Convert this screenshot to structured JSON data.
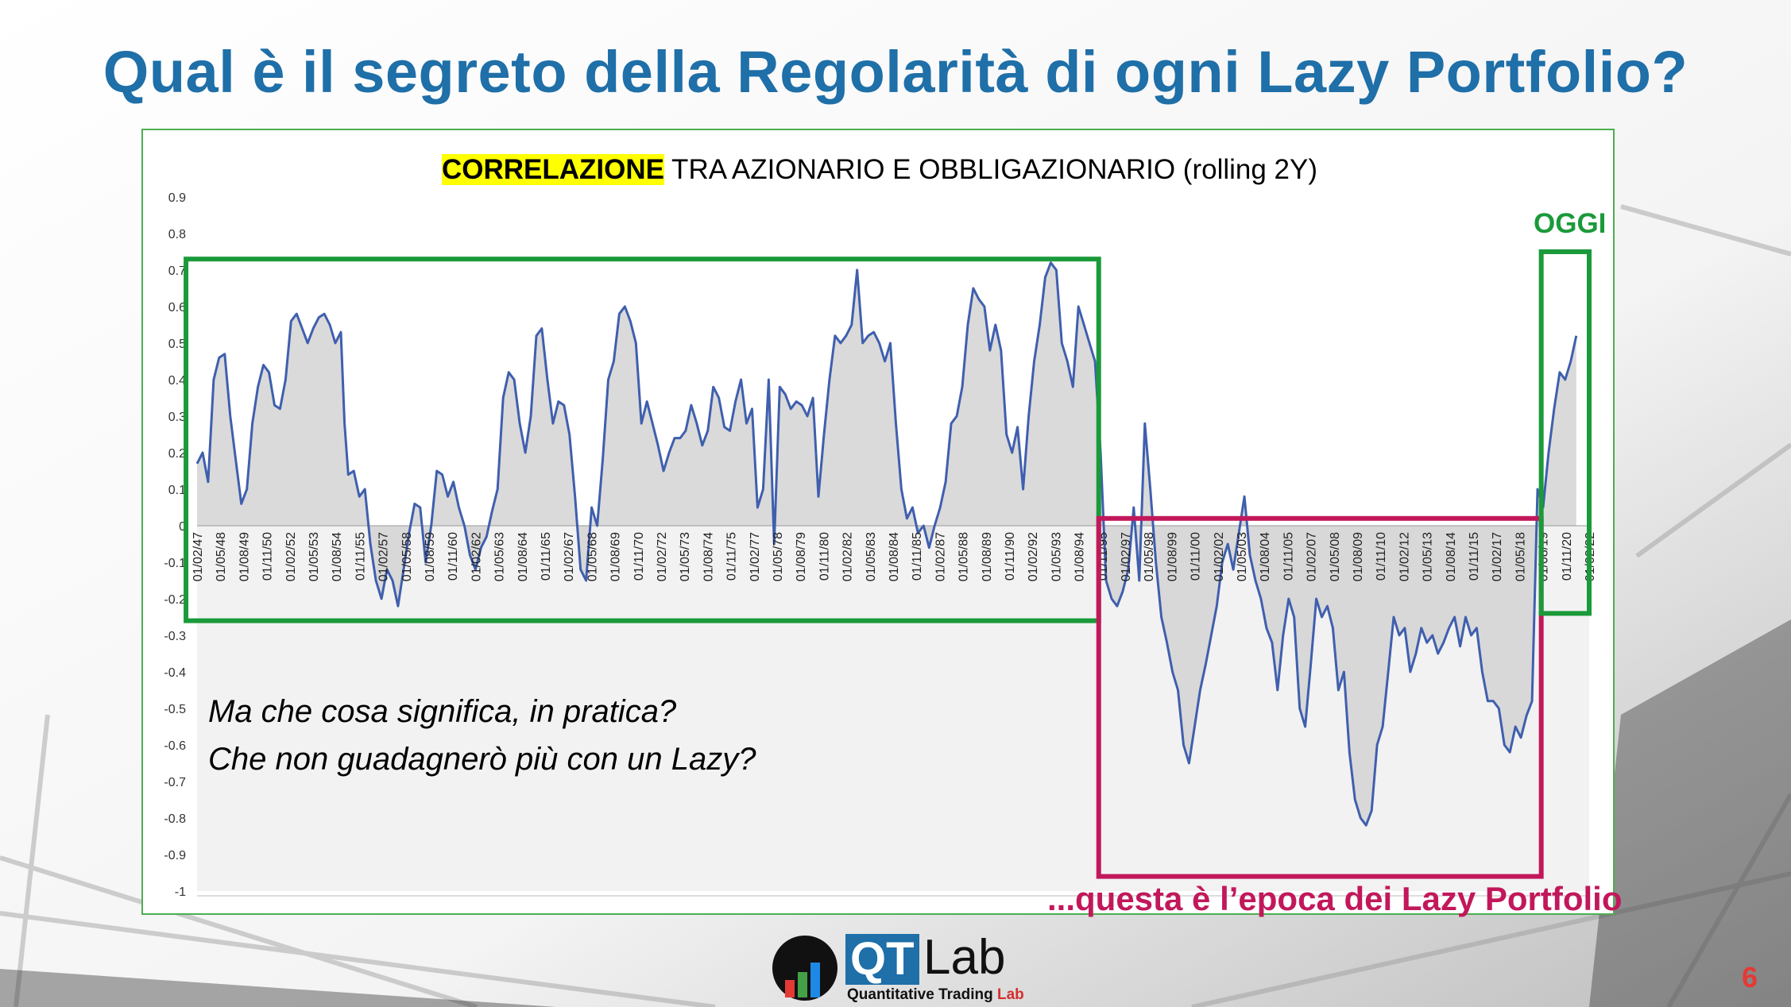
{
  "slide": {
    "title": "Qual è il segreto della Regolarità di ogni Lazy Portfolio?",
    "page_number": "6"
  },
  "chart_title": {
    "highlight": "CORRELAZIONE",
    "rest": " TRA AZIONARIO E OBBLIGAZIONARIO (rolling 2Y)"
  },
  "annotations": {
    "oggi": "OGGI",
    "question_line1": "Ma che cosa significa, in pratica?",
    "question_line2": "Che non guadagnerò più con un Lazy?",
    "lazy_era": "...questa è l’epoca dei Lazy Portfolio",
    "colors": {
      "green": "#1a9a3a",
      "crimson": "#c2185b",
      "series": "#3f5fae",
      "fill": "#d3d3d3"
    }
  },
  "logo": {
    "qt": "QT",
    "lab": "Lab",
    "sub_prefix": "Quantitative Trading ",
    "sub_lab": "Lab"
  },
  "chart_data": {
    "type": "area",
    "title": "CORRELAZIONE TRA AZIONARIO E OBBLIGAZIONARIO (rolling 2Y)",
    "xlabel": "",
    "ylabel": "",
    "ylim": [
      -1,
      0.9
    ],
    "y_ticks": [
      "0.9",
      "0.8",
      "0.7",
      "0.6",
      "0.5",
      "0.4",
      "0.3",
      "0.2",
      "0.1",
      "0",
      "-0.1",
      "-0.2",
      "-0.3",
      "-0.4",
      "-0.5",
      "-0.6",
      "-0.7",
      "-0.8",
      "-0.9",
      "-1"
    ],
    "x_tick_labels": [
      "01/02/47",
      "01/05/48",
      "01/08/49",
      "01/11/50",
      "01/02/52",
      "01/05/53",
      "01/08/54",
      "01/11/55",
      "01/02/57",
      "01/05/58",
      "01/08/59",
      "01/11/60",
      "01/02/62",
      "01/05/63",
      "01/08/64",
      "01/11/65",
      "01/02/67",
      "01/05/68",
      "01/08/69",
      "01/11/70",
      "01/02/72",
      "01/05/73",
      "01/08/74",
      "01/11/75",
      "01/02/77",
      "01/05/78",
      "01/08/79",
      "01/11/80",
      "01/02/82",
      "01/05/83",
      "01/08/84",
      "01/11/85",
      "01/02/87",
      "01/05/88",
      "01/08/89",
      "01/11/90",
      "01/02/92",
      "01/05/93",
      "01/08/94",
      "01/11/95",
      "01/02/97",
      "01/05/98",
      "01/08/99",
      "01/11/00",
      "01/02/02",
      "01/05/03",
      "01/08/04",
      "01/11/05",
      "01/02/07",
      "01/05/08",
      "01/08/09",
      "01/11/10",
      "01/02/12",
      "01/05/13",
      "01/08/14",
      "01/11/15",
      "01/02/17",
      "01/05/18",
      "01/08/19",
      "01/11/20",
      "01/02/22"
    ],
    "x_range_years": [
      1947.1,
      2022.6
    ],
    "grid": false,
    "legend": "none",
    "series": [
      {
        "points": [
          [
            1947.1,
            0.17
          ],
          [
            1947.4,
            0.2
          ],
          [
            1947.7,
            0.12
          ],
          [
            1948.0,
            0.4
          ],
          [
            1948.3,
            0.46
          ],
          [
            1948.6,
            0.47
          ],
          [
            1948.9,
            0.3
          ],
          [
            1949.2,
            0.18
          ],
          [
            1949.5,
            0.06
          ],
          [
            1949.8,
            0.1
          ],
          [
            1950.1,
            0.28
          ],
          [
            1950.4,
            0.38
          ],
          [
            1950.7,
            0.44
          ],
          [
            1951.0,
            0.42
          ],
          [
            1951.3,
            0.33
          ],
          [
            1951.6,
            0.32
          ],
          [
            1951.9,
            0.4
          ],
          [
            1952.2,
            0.56
          ],
          [
            1952.5,
            0.58
          ],
          [
            1952.8,
            0.54
          ],
          [
            1953.1,
            0.5
          ],
          [
            1953.4,
            0.54
          ],
          [
            1953.7,
            0.57
          ],
          [
            1954.0,
            0.58
          ],
          [
            1954.3,
            0.55
          ],
          [
            1954.6,
            0.5
          ],
          [
            1954.9,
            0.53
          ],
          [
            1955.1,
            0.28
          ],
          [
            1955.3,
            0.14
          ],
          [
            1955.6,
            0.15
          ],
          [
            1955.9,
            0.08
          ],
          [
            1956.2,
            0.1
          ],
          [
            1956.5,
            -0.05
          ],
          [
            1956.8,
            -0.15
          ],
          [
            1957.1,
            -0.2
          ],
          [
            1957.4,
            -0.12
          ],
          [
            1957.7,
            -0.15
          ],
          [
            1958.0,
            -0.22
          ],
          [
            1958.3,
            -0.12
          ],
          [
            1958.6,
            -0.02
          ],
          [
            1958.9,
            0.06
          ],
          [
            1959.2,
            0.05
          ],
          [
            1959.5,
            -0.1
          ],
          [
            1959.8,
            0.0
          ],
          [
            1960.1,
            0.15
          ],
          [
            1960.4,
            0.14
          ],
          [
            1960.7,
            0.08
          ],
          [
            1961.0,
            0.12
          ],
          [
            1961.3,
            0.05
          ],
          [
            1961.6,
            0.0
          ],
          [
            1961.9,
            -0.08
          ],
          [
            1962.2,
            -0.12
          ],
          [
            1962.5,
            -0.06
          ],
          [
            1962.8,
            -0.03
          ],
          [
            1963.1,
            0.04
          ],
          [
            1963.4,
            0.1
          ],
          [
            1963.7,
            0.35
          ],
          [
            1964.0,
            0.42
          ],
          [
            1964.3,
            0.4
          ],
          [
            1964.6,
            0.28
          ],
          [
            1964.9,
            0.2
          ],
          [
            1965.2,
            0.3
          ],
          [
            1965.5,
            0.52
          ],
          [
            1965.8,
            0.54
          ],
          [
            1966.1,
            0.4
          ],
          [
            1966.4,
            0.28
          ],
          [
            1966.7,
            0.34
          ],
          [
            1967.0,
            0.33
          ],
          [
            1967.3,
            0.25
          ],
          [
            1967.6,
            0.08
          ],
          [
            1967.9,
            -0.12
          ],
          [
            1968.2,
            -0.15
          ],
          [
            1968.5,
            0.05
          ],
          [
            1968.8,
            0.0
          ],
          [
            1969.1,
            0.18
          ],
          [
            1969.4,
            0.4
          ],
          [
            1969.7,
            0.45
          ],
          [
            1970.0,
            0.58
          ],
          [
            1970.3,
            0.6
          ],
          [
            1970.6,
            0.56
          ],
          [
            1970.9,
            0.5
          ],
          [
            1971.2,
            0.28
          ],
          [
            1971.5,
            0.34
          ],
          [
            1971.8,
            0.28
          ],
          [
            1972.1,
            0.22
          ],
          [
            1972.4,
            0.15
          ],
          [
            1972.7,
            0.2
          ],
          [
            1973.0,
            0.24
          ],
          [
            1973.3,
            0.24
          ],
          [
            1973.6,
            0.26
          ],
          [
            1973.9,
            0.33
          ],
          [
            1974.2,
            0.28
          ],
          [
            1974.5,
            0.22
          ],
          [
            1974.8,
            0.26
          ],
          [
            1975.1,
            0.38
          ],
          [
            1975.4,
            0.35
          ],
          [
            1975.7,
            0.27
          ],
          [
            1976.0,
            0.26
          ],
          [
            1976.3,
            0.34
          ],
          [
            1976.6,
            0.4
          ],
          [
            1976.9,
            0.28
          ],
          [
            1977.2,
            0.32
          ],
          [
            1977.5,
            0.05
          ],
          [
            1977.8,
            0.1
          ],
          [
            1978.1,
            0.4
          ],
          [
            1978.4,
            -0.05
          ],
          [
            1978.7,
            0.38
          ],
          [
            1979.0,
            0.36
          ],
          [
            1979.3,
            0.32
          ],
          [
            1979.6,
            0.34
          ],
          [
            1979.9,
            0.33
          ],
          [
            1980.2,
            0.3
          ],
          [
            1980.5,
            0.35
          ],
          [
            1980.8,
            0.08
          ],
          [
            1981.1,
            0.25
          ],
          [
            1981.4,
            0.4
          ],
          [
            1981.7,
            0.52
          ],
          [
            1982.0,
            0.5
          ],
          [
            1982.3,
            0.52
          ],
          [
            1982.6,
            0.55
          ],
          [
            1982.9,
            0.7
          ],
          [
            1983.2,
            0.5
          ],
          [
            1983.5,
            0.52
          ],
          [
            1983.8,
            0.53
          ],
          [
            1984.1,
            0.5
          ],
          [
            1984.4,
            0.45
          ],
          [
            1984.7,
            0.5
          ],
          [
            1985.0,
            0.28
          ],
          [
            1985.3,
            0.1
          ],
          [
            1985.6,
            0.02
          ],
          [
            1985.9,
            0.05
          ],
          [
            1986.2,
            -0.02
          ],
          [
            1986.5,
            0.0
          ],
          [
            1986.8,
            -0.06
          ],
          [
            1987.1,
            0.0
          ],
          [
            1987.4,
            0.05
          ],
          [
            1987.7,
            0.12
          ],
          [
            1988.0,
            0.28
          ],
          [
            1988.3,
            0.3
          ],
          [
            1988.6,
            0.38
          ],
          [
            1988.9,
            0.55
          ],
          [
            1989.2,
            0.65
          ],
          [
            1989.5,
            0.62
          ],
          [
            1989.8,
            0.6
          ],
          [
            1990.1,
            0.48
          ],
          [
            1990.4,
            0.55
          ],
          [
            1990.7,
            0.48
          ],
          [
            1991.0,
            0.25
          ],
          [
            1991.3,
            0.2
          ],
          [
            1991.6,
            0.27
          ],
          [
            1991.9,
            0.1
          ],
          [
            1992.2,
            0.3
          ],
          [
            1992.5,
            0.45
          ],
          [
            1992.8,
            0.55
          ],
          [
            1993.1,
            0.68
          ],
          [
            1993.4,
            0.72
          ],
          [
            1993.7,
            0.7
          ],
          [
            1994.0,
            0.5
          ],
          [
            1994.3,
            0.45
          ],
          [
            1994.6,
            0.38
          ],
          [
            1994.9,
            0.6
          ],
          [
            1995.2,
            0.55
          ],
          [
            1995.5,
            0.5
          ],
          [
            1995.8,
            0.45
          ],
          [
            1996.1,
            0.2
          ],
          [
            1996.4,
            -0.15
          ],
          [
            1996.7,
            -0.2
          ],
          [
            1997.0,
            -0.22
          ],
          [
            1997.3,
            -0.18
          ],
          [
            1997.6,
            -0.12
          ],
          [
            1997.9,
            0.05
          ],
          [
            1998.2,
            -0.15
          ],
          [
            1998.5,
            0.28
          ],
          [
            1998.8,
            0.1
          ],
          [
            1999.1,
            -0.1
          ],
          [
            1999.4,
            -0.25
          ],
          [
            1999.7,
            -0.32
          ],
          [
            2000.0,
            -0.4
          ],
          [
            2000.3,
            -0.45
          ],
          [
            2000.6,
            -0.6
          ],
          [
            2000.9,
            -0.65
          ],
          [
            2001.2,
            -0.55
          ],
          [
            2001.5,
            -0.45
          ],
          [
            2001.8,
            -0.38
          ],
          [
            2002.1,
            -0.3
          ],
          [
            2002.4,
            -0.22
          ],
          [
            2002.7,
            -0.1
          ],
          [
            2003.0,
            -0.05
          ],
          [
            2003.3,
            -0.12
          ],
          [
            2003.6,
            -0.02
          ],
          [
            2003.9,
            0.08
          ],
          [
            2004.2,
            -0.08
          ],
          [
            2004.5,
            -0.15
          ],
          [
            2004.8,
            -0.2
          ],
          [
            2005.1,
            -0.28
          ],
          [
            2005.4,
            -0.32
          ],
          [
            2005.7,
            -0.45
          ],
          [
            2006.0,
            -0.3
          ],
          [
            2006.3,
            -0.2
          ],
          [
            2006.6,
            -0.25
          ],
          [
            2006.9,
            -0.5
          ],
          [
            2007.2,
            -0.55
          ],
          [
            2007.5,
            -0.38
          ],
          [
            2007.8,
            -0.2
          ],
          [
            2008.1,
            -0.25
          ],
          [
            2008.4,
            -0.22
          ],
          [
            2008.7,
            -0.28
          ],
          [
            2009.0,
            -0.45
          ],
          [
            2009.3,
            -0.4
          ],
          [
            2009.6,
            -0.62
          ],
          [
            2009.9,
            -0.75
          ],
          [
            2010.2,
            -0.8
          ],
          [
            2010.5,
            -0.82
          ],
          [
            2010.8,
            -0.78
          ],
          [
            2011.1,
            -0.6
          ],
          [
            2011.4,
            -0.55
          ],
          [
            2011.7,
            -0.4
          ],
          [
            2012.0,
            -0.25
          ],
          [
            2012.3,
            -0.3
          ],
          [
            2012.6,
            -0.28
          ],
          [
            2012.9,
            -0.4
          ],
          [
            2013.2,
            -0.35
          ],
          [
            2013.5,
            -0.28
          ],
          [
            2013.8,
            -0.32
          ],
          [
            2014.1,
            -0.3
          ],
          [
            2014.4,
            -0.35
          ],
          [
            2014.7,
            -0.32
          ],
          [
            2015.0,
            -0.28
          ],
          [
            2015.3,
            -0.25
          ],
          [
            2015.6,
            -0.33
          ],
          [
            2015.9,
            -0.25
          ],
          [
            2016.2,
            -0.3
          ],
          [
            2016.5,
            -0.28
          ],
          [
            2016.8,
            -0.4
          ],
          [
            2017.1,
            -0.48
          ],
          [
            2017.4,
            -0.48
          ],
          [
            2017.7,
            -0.5
          ],
          [
            2018.0,
            -0.6
          ],
          [
            2018.3,
            -0.62
          ],
          [
            2018.6,
            -0.55
          ],
          [
            2018.9,
            -0.58
          ],
          [
            2019.2,
            -0.52
          ],
          [
            2019.5,
            -0.48
          ],
          [
            2019.8,
            0.1
          ],
          [
            2020.1,
            0.05
          ],
          [
            2020.4,
            0.2
          ],
          [
            2020.7,
            0.32
          ],
          [
            2021.0,
            0.42
          ],
          [
            2021.3,
            0.4
          ],
          [
            2021.6,
            0.45
          ],
          [
            2021.9,
            0.52
          ]
        ]
      }
    ],
    "highlight_boxes": [
      {
        "label": "",
        "color": "green",
        "x": [
          1946.5,
          1996.0
        ],
        "y": [
          -0.26,
          0.73
        ]
      },
      {
        "label": "...questa è l’epoca dei Lazy Portfolio",
        "color": "crimson",
        "x": [
          1996.0,
          2020.0
        ],
        "y": [
          -0.96,
          0.02
        ]
      },
      {
        "label": "OGGI",
        "color": "green",
        "x": [
          2020.0,
          2022.6
        ],
        "y": [
          -0.24,
          0.75
        ]
      }
    ]
  }
}
